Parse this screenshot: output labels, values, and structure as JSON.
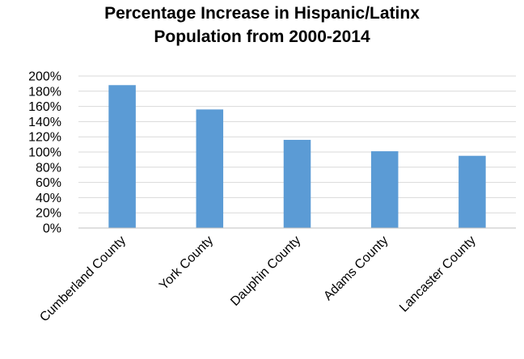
{
  "chart_data": {
    "type": "bar",
    "title_lines": [
      "Percentage Increase in Hispanic/Latinx",
      "Population from 2000-2014"
    ],
    "categories": [
      "Cumberland County",
      "York County",
      "Dauphin County",
      "Adams County",
      "Lancaster County"
    ],
    "values": [
      188,
      156,
      116,
      101,
      95
    ],
    "value_unit": "%",
    "ylim": [
      0,
      200
    ],
    "y_ticks": [
      "0%",
      "20%",
      "40%",
      "60%",
      "80%",
      "100%",
      "120%",
      "140%",
      "160%",
      "180%",
      "200%"
    ],
    "grid": true,
    "legend": "none",
    "xlabel": "",
    "ylabel": "",
    "colors": {
      "bar": "#5b9bd5",
      "grid": "#d9d9d9",
      "axis": "#bfbfbf"
    }
  }
}
